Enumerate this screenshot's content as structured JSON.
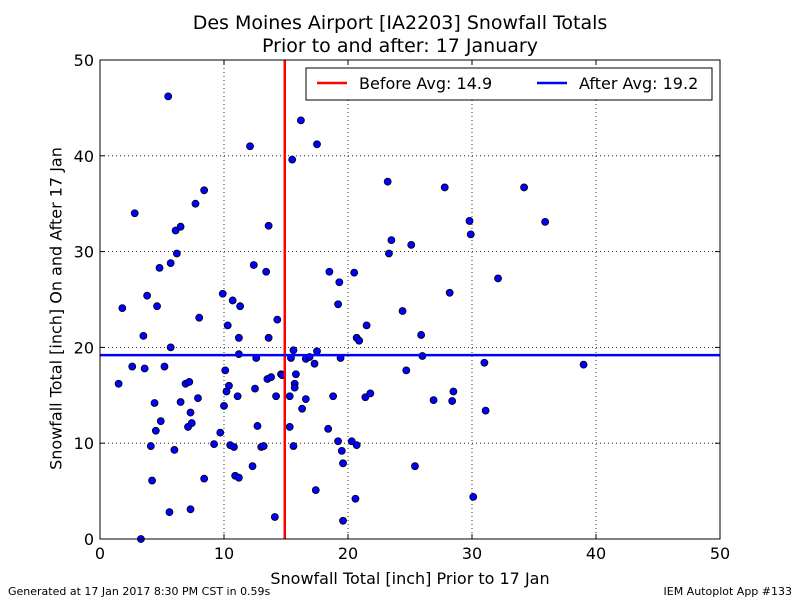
{
  "chart_data": {
    "type": "scatter",
    "title": "Des Moines Airport [IA2203] Snowfall Totals",
    "subtitle": "Prior to and after: 17 January",
    "xlabel": "Snowfall Total [inch] Prior to 17 Jan",
    "ylabel": "Snowfall Total [inch] On and After 17 Jan",
    "xlim": [
      0,
      50
    ],
    "ylim": [
      0,
      50
    ],
    "xticks": [
      0,
      10,
      20,
      30,
      40,
      50
    ],
    "yticks": [
      0,
      10,
      20,
      30,
      40,
      50
    ],
    "grid": true,
    "legend_position": "top-right",
    "colors": {
      "points": "#0000ff",
      "before": "#ff0000",
      "after": "#0000ff"
    },
    "lines": [
      {
        "orientation": "vertical",
        "value": 14.9,
        "label": "Before Avg: 14.9"
      },
      {
        "orientation": "horizontal",
        "value": 19.2,
        "label": "After Avg: 19.2"
      }
    ],
    "points": [
      [
        1.5,
        16.2
      ],
      [
        1.8,
        24.1
      ],
      [
        2.6,
        18.0
      ],
      [
        2.8,
        34.0
      ],
      [
        3.3,
        0.0
      ],
      [
        3.5,
        21.2
      ],
      [
        3.6,
        17.8
      ],
      [
        3.8,
        25.4
      ],
      [
        4.1,
        9.7
      ],
      [
        4.2,
        6.1
      ],
      [
        4.4,
        14.2
      ],
      [
        4.5,
        11.3
      ],
      [
        4.6,
        24.3
      ],
      [
        4.8,
        28.3
      ],
      [
        4.9,
        12.3
      ],
      [
        5.2,
        18.0
      ],
      [
        5.5,
        46.2
      ],
      [
        5.6,
        2.8
      ],
      [
        5.7,
        20.0
      ],
      [
        5.7,
        28.8
      ],
      [
        6.0,
        9.3
      ],
      [
        6.1,
        32.2
      ],
      [
        6.2,
        29.8
      ],
      [
        6.5,
        14.3
      ],
      [
        6.5,
        32.6
      ],
      [
        6.9,
        16.2
      ],
      [
        7.1,
        11.7
      ],
      [
        7.2,
        16.4
      ],
      [
        7.3,
        13.2
      ],
      [
        7.3,
        3.1
      ],
      [
        7.4,
        12.1
      ],
      [
        7.7,
        35.0
      ],
      [
        7.9,
        14.7
      ],
      [
        8.0,
        23.1
      ],
      [
        8.4,
        36.4
      ],
      [
        8.4,
        6.3
      ],
      [
        9.2,
        9.9
      ],
      [
        9.7,
        11.1
      ],
      [
        9.9,
        25.6
      ],
      [
        10.0,
        13.9
      ],
      [
        10.1,
        17.6
      ],
      [
        10.2,
        15.4
      ],
      [
        10.3,
        22.3
      ],
      [
        10.4,
        16.0
      ],
      [
        10.5,
        9.8
      ],
      [
        10.7,
        24.9
      ],
      [
        10.8,
        9.6
      ],
      [
        10.9,
        6.6
      ],
      [
        11.1,
        14.9
      ],
      [
        11.2,
        6.4
      ],
      [
        11.2,
        19.3
      ],
      [
        11.2,
        21.0
      ],
      [
        11.3,
        24.3
      ],
      [
        12.1,
        41.0
      ],
      [
        12.3,
        7.6
      ],
      [
        12.4,
        28.6
      ],
      [
        12.5,
        15.7
      ],
      [
        12.6,
        18.9
      ],
      [
        12.7,
        11.8
      ],
      [
        13.0,
        9.6
      ],
      [
        13.2,
        9.7
      ],
      [
        13.4,
        27.9
      ],
      [
        13.5,
        16.7
      ],
      [
        13.6,
        32.7
      ],
      [
        13.6,
        21.0
      ],
      [
        13.8,
        16.9
      ],
      [
        14.1,
        2.3
      ],
      [
        14.2,
        14.9
      ],
      [
        14.3,
        22.9
      ],
      [
        14.6,
        17.2
      ],
      [
        14.7,
        17.1
      ],
      [
        15.3,
        11.7
      ],
      [
        15.3,
        14.9
      ],
      [
        15.4,
        18.9
      ],
      [
        15.5,
        39.6
      ],
      [
        15.6,
        19.7
      ],
      [
        15.6,
        9.7
      ],
      [
        15.7,
        16.2
      ],
      [
        15.7,
        15.8
      ],
      [
        15.8,
        17.2
      ],
      [
        16.2,
        43.7
      ],
      [
        16.3,
        13.6
      ],
      [
        16.6,
        14.6
      ],
      [
        16.6,
        18.8
      ],
      [
        16.9,
        19.0
      ],
      [
        17.3,
        18.3
      ],
      [
        17.4,
        5.1
      ],
      [
        17.5,
        41.2
      ],
      [
        17.5,
        19.6
      ],
      [
        18.4,
        11.5
      ],
      [
        18.5,
        27.9
      ],
      [
        18.8,
        14.9
      ],
      [
        19.2,
        10.2
      ],
      [
        19.2,
        24.5
      ],
      [
        19.3,
        26.8
      ],
      [
        19.4,
        18.9
      ],
      [
        19.5,
        9.2
      ],
      [
        19.6,
        7.9
      ],
      [
        19.6,
        1.9
      ],
      [
        20.3,
        10.2
      ],
      [
        20.5,
        27.8
      ],
      [
        20.6,
        4.2
      ],
      [
        20.7,
        9.8
      ],
      [
        20.7,
        21.0
      ],
      [
        20.9,
        20.7
      ],
      [
        21.4,
        14.8
      ],
      [
        21.5,
        22.3
      ],
      [
        21.8,
        15.2
      ],
      [
        23.2,
        37.3
      ],
      [
        23.3,
        29.8
      ],
      [
        23.5,
        31.2
      ],
      [
        24.4,
        23.8
      ],
      [
        24.7,
        17.6
      ],
      [
        25.1,
        30.7
      ],
      [
        25.4,
        7.6
      ],
      [
        25.9,
        21.3
      ],
      [
        26.0,
        19.1
      ],
      [
        26.9,
        14.5
      ],
      [
        27.8,
        36.7
      ],
      [
        28.2,
        25.7
      ],
      [
        28.4,
        14.4
      ],
      [
        28.5,
        15.4
      ],
      [
        29.8,
        33.2
      ],
      [
        29.9,
        31.8
      ],
      [
        30.1,
        4.4
      ],
      [
        31.0,
        18.4
      ],
      [
        31.1,
        13.4
      ],
      [
        32.1,
        27.2
      ],
      [
        34.2,
        36.7
      ],
      [
        35.9,
        33.1
      ],
      [
        39.0,
        18.2
      ]
    ]
  },
  "footer": {
    "left": "Generated at 17 Jan 2017 8:30 PM CST in 0.59s",
    "right": "IEM Autoplot App #133"
  }
}
